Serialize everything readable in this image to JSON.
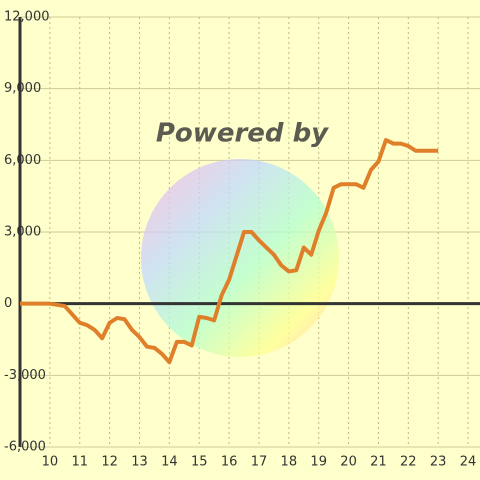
{
  "chart_data": {
    "type": "line",
    "watermark": "Powered by",
    "x": [
      9,
      10,
      10.5,
      11,
      11.25,
      11.5,
      11.75,
      12,
      12.25,
      12.5,
      12.75,
      13,
      13.25,
      13.5,
      13.75,
      14,
      14.25,
      14.5,
      14.75,
      15,
      15.25,
      15.5,
      15.75,
      16,
      16.5,
      16.75,
      17,
      17.25,
      17.5,
      17.75,
      18,
      18.25,
      18.5,
      18.75,
      19,
      19.25,
      19.5,
      19.75,
      20.25,
      20.5,
      20.75,
      21,
      21.25,
      21.5,
      21.75,
      22,
      22.25,
      23
    ],
    "series": [
      {
        "color": "#e07f2a",
        "values": [
          0,
          0,
          -100,
          -800,
          -900,
          -1100,
          -1450,
          -800,
          -600,
          -650,
          -1100,
          -1400,
          -1800,
          -1850,
          -2100,
          -2450,
          -1600,
          -1600,
          -1750,
          -550,
          -600,
          -700,
          350,
          1000,
          3000,
          3000,
          2650,
          2350,
          2050,
          1600,
          1350,
          1400,
          2350,
          2050,
          3050,
          3800,
          4850,
          5000,
          5000,
          4850,
          5600,
          5950,
          6850,
          6700,
          6700,
          6600,
          6400,
          6400
        ]
      }
    ],
    "xlim": [
      9,
      24.4
    ],
    "xticks": [
      10,
      11,
      12,
      13,
      14,
      15,
      16,
      17,
      18,
      19,
      20,
      21,
      22,
      23,
      24
    ],
    "ylim": [
      -6000,
      12000
    ],
    "yticks": [
      {
        "value": -6000,
        "label": "-6,000"
      },
      {
        "value": -3000,
        "label": "-3,000"
      },
      0,
      {
        "value": 3000,
        "label": "3,000"
      },
      {
        "value": 6000,
        "label": "6,000"
      },
      {
        "value": 9000,
        "label": "9,000"
      },
      {
        "value": 12000,
        "label": "12,000"
      }
    ],
    "grid": true
  }
}
